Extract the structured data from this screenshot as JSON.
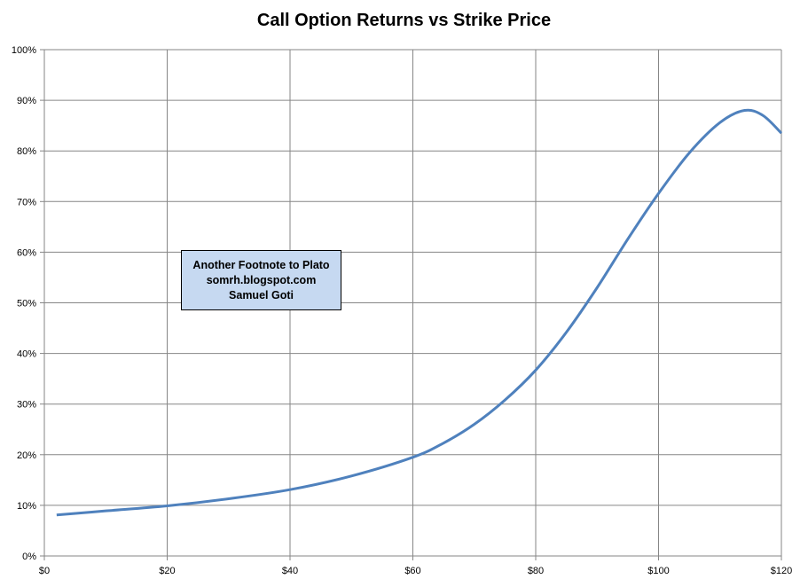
{
  "chart_data": {
    "type": "line",
    "title": "Call Option Returns vs Strike Price",
    "xlabel": "",
    "ylabel": "",
    "xlim": [
      0,
      120
    ],
    "ylim": [
      0,
      100
    ],
    "x_ticks": [
      "$0",
      "$20",
      "$40",
      "$60",
      "$80",
      "$100",
      "$120"
    ],
    "y_ticks": [
      "0%",
      "10%",
      "20%",
      "30%",
      "40%",
      "50%",
      "60%",
      "70%",
      "80%",
      "90%",
      "100%"
    ],
    "grid": true,
    "legend": "none",
    "series": [
      {
        "color": "#4f81bd",
        "x": [
          2,
          10,
          20,
          30,
          40,
          50,
          60,
          65,
          70,
          75,
          80,
          85,
          90,
          95,
          100,
          105,
          110,
          114,
          117,
          120
        ],
        "y": [
          8.1,
          8.9,
          9.9,
          11.3,
          13.1,
          15.8,
          19.5,
          22.3,
          26.0,
          30.8,
          36.7,
          44.2,
          53.0,
          62.6,
          71.6,
          79.6,
          85.6,
          88.0,
          87.0,
          83.5
        ]
      }
    ],
    "annotation": {
      "lines": [
        "Another Footnote to Plato",
        "somrh.blogspot.com",
        "Samuel Goti"
      ],
      "background": "#c6d9f1"
    }
  }
}
